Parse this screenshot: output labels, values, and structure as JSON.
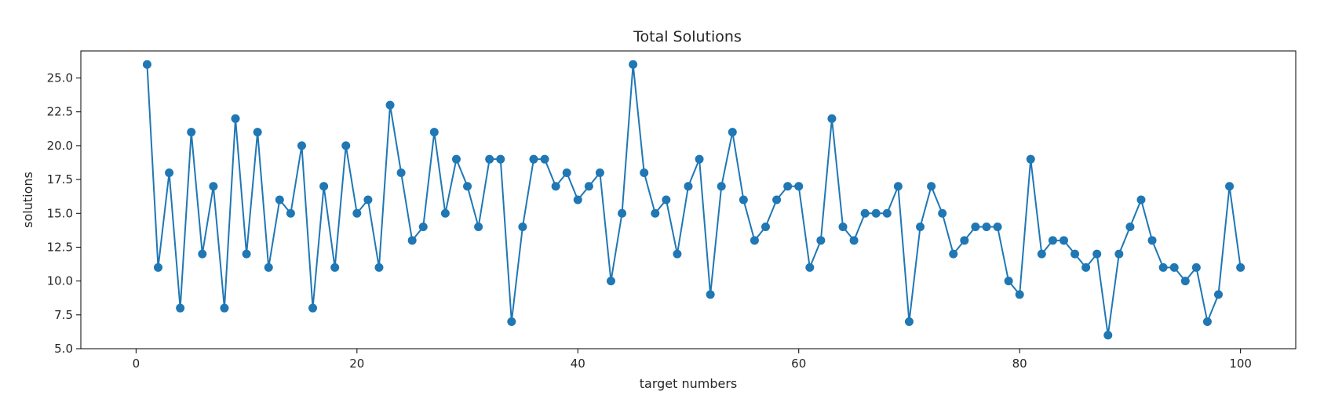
{
  "chart_data": {
    "type": "line",
    "title": "Total Solutions",
    "xlabel": "target numbers",
    "ylabel": "solutions",
    "xlim": [
      -5,
      105
    ],
    "ylim": [
      5,
      27
    ],
    "xticks": [
      0,
      20,
      40,
      60,
      80,
      100
    ],
    "xtick_labels": [
      "0",
      "20",
      "40",
      "60",
      "80",
      "100"
    ],
    "yticks": [
      5,
      7.5,
      10,
      12.5,
      15,
      17.5,
      20,
      22.5,
      25
    ],
    "ytick_labels": [
      "5.0",
      "7.5",
      "10.0",
      "12.5",
      "15.0",
      "17.5",
      "20.0",
      "22.5",
      "25.0"
    ],
    "grid": false,
    "legend": "none",
    "color": "#1f77b4",
    "marker": "circle",
    "x": [
      1,
      2,
      3,
      4,
      5,
      6,
      7,
      8,
      9,
      10,
      11,
      12,
      13,
      14,
      15,
      16,
      17,
      18,
      19,
      20,
      21,
      22,
      23,
      24,
      25,
      26,
      27,
      28,
      29,
      30,
      31,
      32,
      33,
      34,
      35,
      36,
      37,
      38,
      39,
      40,
      41,
      42,
      43,
      44,
      45,
      46,
      47,
      48,
      49,
      50,
      51,
      52,
      53,
      54,
      55,
      56,
      57,
      58,
      59,
      60,
      61,
      62,
      63,
      64,
      65,
      66,
      67,
      68,
      69,
      70,
      71,
      72,
      73,
      74,
      75,
      76,
      77,
      78,
      79,
      80,
      81,
      82,
      83,
      84,
      85,
      86,
      87,
      88,
      89,
      90,
      91,
      92,
      93,
      94,
      95,
      96,
      97,
      98,
      99,
      100
    ],
    "y": [
      26,
      11,
      18,
      8,
      21,
      12,
      17,
      8,
      22,
      12,
      21,
      11,
      16,
      15,
      20,
      8,
      17,
      11,
      20,
      15,
      16,
      11,
      23,
      18,
      13,
      14,
      21,
      15,
      19,
      17,
      14,
      19,
      19,
      7,
      14,
      19,
      19,
      17,
      18,
      16,
      17,
      18,
      10,
      15,
      26,
      18,
      15,
      16,
      12,
      17,
      19,
      9,
      17,
      21,
      16,
      13,
      14,
      16,
      17,
      17,
      11,
      13,
      22,
      14,
      13,
      15,
      15,
      15,
      17,
      7,
      14,
      17,
      15,
      12,
      13,
      14,
      14,
      14,
      10,
      9,
      19,
      12,
      13,
      13,
      12,
      11,
      12,
      6,
      12,
      14,
      16,
      13,
      11,
      11,
      10,
      11,
      7,
      9,
      17,
      11
    ]
  }
}
